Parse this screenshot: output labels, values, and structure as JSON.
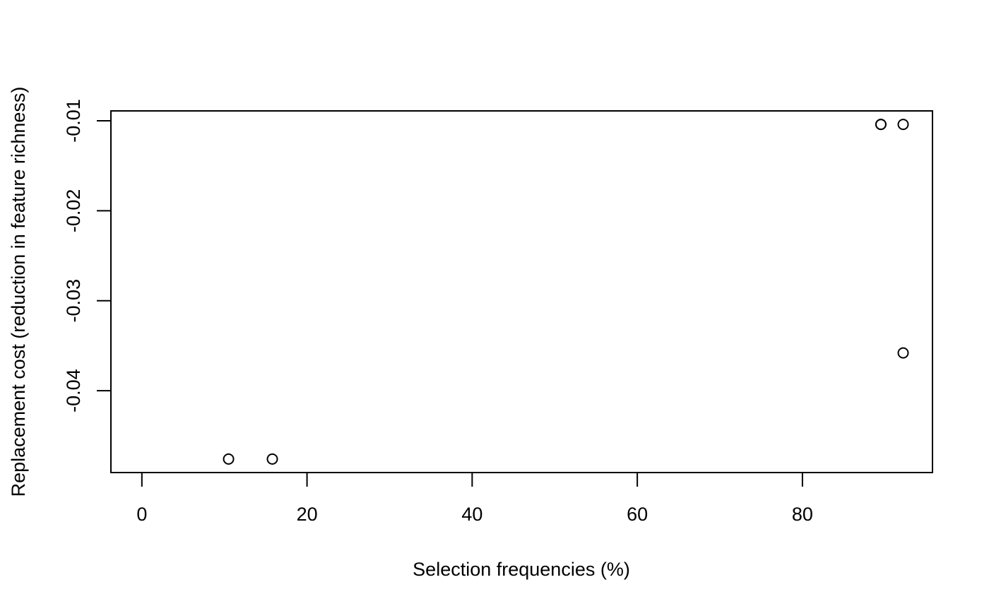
{
  "chart_data": {
    "type": "scatter",
    "title": "",
    "xlabel": "Selection frequencies (%)",
    "ylabel": "Replacement cost (reduction in feature richness)",
    "xlim": [
      -3.75,
      95.75
    ],
    "ylim": [
      -0.0491,
      -0.0089
    ],
    "xticks": [
      0,
      20,
      40,
      60,
      80
    ],
    "xtick_labels": [
      "0",
      "20",
      "40",
      "60",
      "80"
    ],
    "yticks": [
      -0.01,
      -0.02,
      -0.03,
      -0.04
    ],
    "ytick_labels": [
      "-0.01",
      "-0.02",
      "-0.03",
      "-0.04"
    ],
    "grid": false,
    "points": [
      {
        "x": 10.5,
        "y": -0.0476
      },
      {
        "x": 15.8,
        "y": -0.0476
      },
      {
        "x": 89.5,
        "y": -0.0104
      },
      {
        "x": 89.5,
        "y": -0.0104
      },
      {
        "x": 92.2,
        "y": -0.0104
      },
      {
        "x": 92.2,
        "y": -0.0358
      }
    ]
  }
}
